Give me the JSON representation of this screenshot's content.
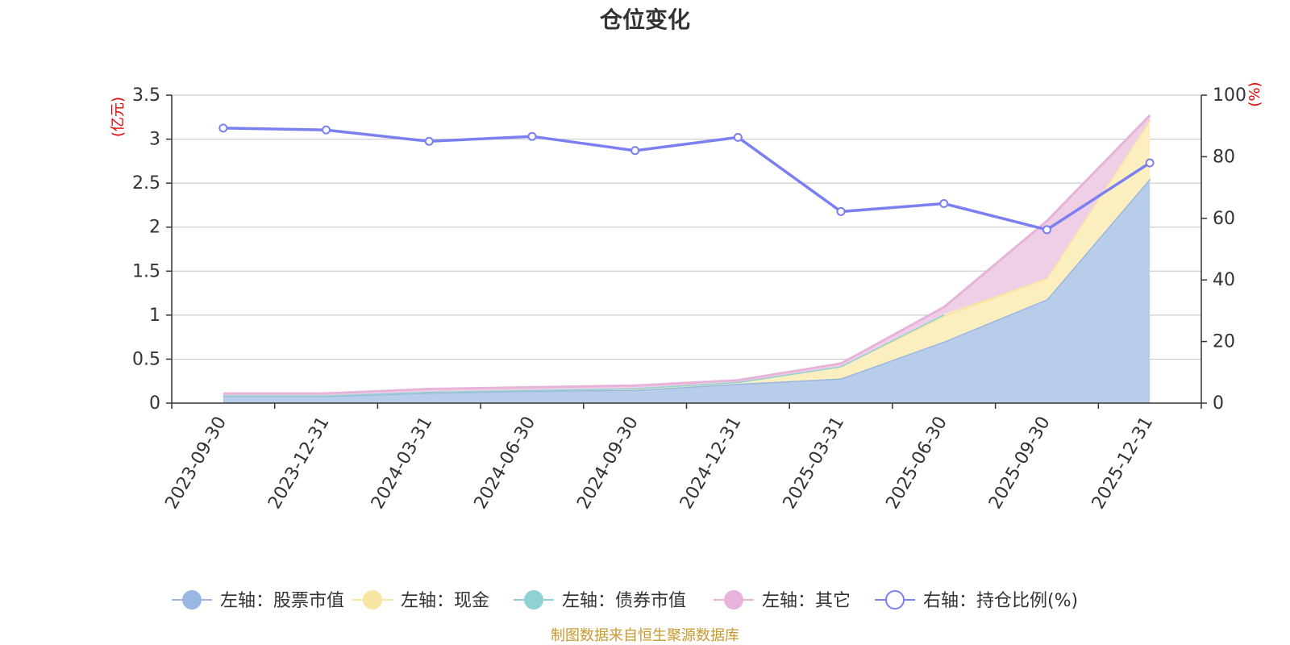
{
  "chart_data": {
    "type": "area",
    "title": "仓位变化",
    "left_unit": "(亿元)",
    "right_unit": "(%)",
    "categories": [
      "2023-09-30",
      "2023-12-31",
      "2024-03-31",
      "2024-06-30",
      "2024-09-30",
      "2024-12-31",
      "2025-03-31",
      "2025-06-30",
      "2025-09-30",
      "2025-12-31"
    ],
    "left_axis": {
      "min": 0,
      "max": 3.5,
      "ticks": [
        "0",
        "0.5",
        "1",
        "1.5",
        "2",
        "2.5",
        "3",
        "3.5"
      ]
    },
    "right_axis": {
      "min": 0,
      "max": 100,
      "ticks": [
        "0",
        "20",
        "40",
        "60",
        "80",
        "100"
      ]
    },
    "stacked_series": [
      {
        "name": "左轴：股票市值",
        "color": "#9ab7e2",
        "fill": "#b8cdea",
        "values": [
          0.08,
          0.08,
          0.12,
          0.14,
          0.15,
          0.22,
          0.28,
          0.7,
          1.18,
          2.55
        ]
      },
      {
        "name": "左轴：现金",
        "color": "#f7e6a2",
        "fill": "#fbefc0",
        "values": [
          0.01,
          0.01,
          0.01,
          0.01,
          0.02,
          0.02,
          0.14,
          0.29,
          0.24,
          0.67
        ]
      },
      {
        "name": "左轴：债券市值",
        "color": "#8fd2d2",
        "fill": "#a8dcdc",
        "values": [
          0,
          0,
          0,
          0,
          0,
          0,
          0,
          0.02,
          null,
          null
        ]
      },
      {
        "name": "左轴：其它",
        "color": "#e7b3d9",
        "fill": "#efcfe6",
        "values": [
          0.02,
          0.02,
          0.03,
          0.03,
          0.03,
          0.02,
          0.03,
          0.08,
          0.65,
          0.05
        ]
      }
    ],
    "line_series": {
      "name": "右轴：持仓比例(%)",
      "color": "#7b7ff0",
      "values": [
        89.3,
        88.7,
        85.0,
        86.6,
        82.0,
        86.3,
        62.2,
        64.8,
        56.3,
        78.0
      ]
    },
    "legend_position": "bottom",
    "grid": true
  },
  "footer": {
    "source": "制图数据来自恒生聚源数据库"
  }
}
